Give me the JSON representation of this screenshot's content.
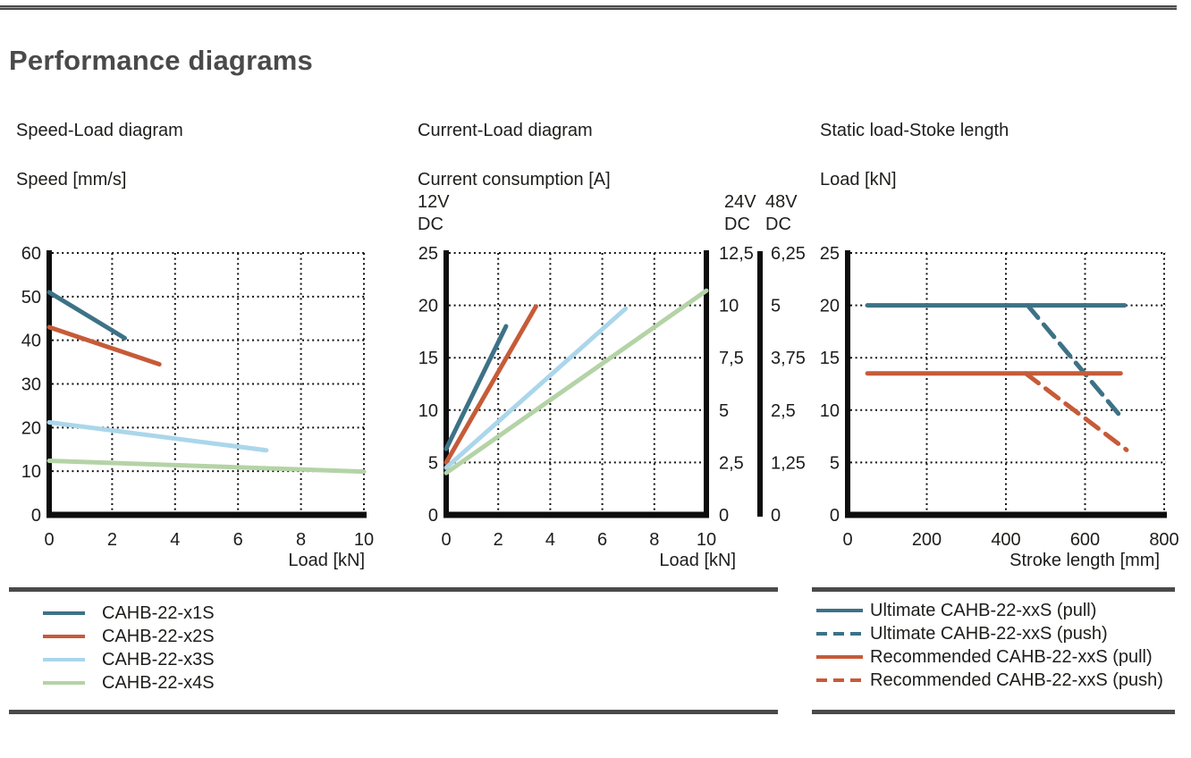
{
  "page": {
    "title": "Performance diagrams"
  },
  "colors": {
    "steel_blue": "#3d7286",
    "orange": "#c65b38",
    "light_blue": "#abd6eb",
    "light_green": "#b4d3a6",
    "rule_gray": "#4a4a4a"
  },
  "chart_data": [
    {
      "type": "line",
      "title": "Speed-Load diagram",
      "ylabel": "Speed [mm/s]",
      "xlabel": "Load [kN]",
      "xlim": [
        0,
        10
      ],
      "ylim": [
        0,
        60
      ],
      "xticks": [
        "0",
        "2",
        "4",
        "6",
        "8",
        "10"
      ],
      "yticks": [
        "0",
        "10",
        "20",
        "30",
        "40",
        "50",
        "60"
      ],
      "grid": "dotted",
      "legend_position": "below-left",
      "series": [
        {
          "name": "CAHB-22-x1S",
          "color": "#3d7286",
          "style": "solid",
          "points": [
            [
              0,
              51
            ],
            [
              2.4,
              40.5
            ]
          ]
        },
        {
          "name": "CAHB-22-x2S",
          "color": "#c65b38",
          "style": "solid",
          "points": [
            [
              0,
              43
            ],
            [
              3.5,
              34.5
            ]
          ]
        },
        {
          "name": "CAHB-22-x3S",
          "color": "#abd6eb",
          "style": "solid",
          "points": [
            [
              0,
              21.2
            ],
            [
              6.9,
              14.8
            ]
          ]
        },
        {
          "name": "CAHB-22-x4S",
          "color": "#b4d3a6",
          "style": "solid",
          "points": [
            [
              0,
              12.4
            ],
            [
              10,
              9.9
            ]
          ]
        }
      ]
    },
    {
      "type": "line",
      "title": "Current-Load diagram",
      "ylabel": "Current consumption [A]",
      "xlabel": "Load [kN]",
      "xlim": [
        0,
        10
      ],
      "ylim": [
        0,
        25
      ],
      "xticks": [
        "0",
        "2",
        "4",
        "6",
        "8",
        "10"
      ],
      "grid": "dotted",
      "left_axis": {
        "volt": "12V",
        "unit": "DC",
        "ticks": [
          "0",
          "5",
          "10",
          "15",
          "20",
          "25"
        ]
      },
      "right_axis_24": {
        "volt": "24V",
        "unit": "DC",
        "ticks": [
          "0",
          "2,5",
          "5",
          "7,5",
          "10",
          "12,5"
        ]
      },
      "right_axis_48": {
        "volt": "48V",
        "unit": "DC",
        "ticks": [
          "0",
          "1,25",
          "2,5",
          "3,75",
          "5",
          "6,25"
        ]
      },
      "series": [
        {
          "name": "CAHB-22-x1S",
          "color": "#3d7286",
          "style": "solid",
          "points": [
            [
              0,
              6.3
            ],
            [
              2.3,
              18
            ]
          ]
        },
        {
          "name": "CAHB-22-x2S",
          "color": "#c65b38",
          "style": "solid",
          "points": [
            [
              0,
              5
            ],
            [
              3.45,
              19.9
            ]
          ]
        },
        {
          "name": "CAHB-22-x3S",
          "color": "#abd6eb",
          "style": "solid",
          "points": [
            [
              0,
              4.5
            ],
            [
              6.9,
              19.7
            ]
          ]
        },
        {
          "name": "CAHB-22-x4S",
          "color": "#b4d3a6",
          "style": "solid",
          "points": [
            [
              0,
              4
            ],
            [
              10,
              21.4
            ]
          ]
        }
      ]
    },
    {
      "type": "line",
      "title": "Static load-Stoke length",
      "ylabel": "Load [kN]",
      "xlabel": "Stroke length [mm]",
      "xlim": [
        0,
        800
      ],
      "ylim": [
        0,
        25
      ],
      "xticks": [
        "0",
        "200",
        "400",
        "600",
        "800"
      ],
      "yticks": [
        "0",
        "5",
        "10",
        "15",
        "20",
        "25"
      ],
      "grid": "dotted",
      "series": [
        {
          "name": "Ultimate CAHB-22-xxS (pull)",
          "color": "#3d7286",
          "style": "solid",
          "points": [
            [
              50,
              20
            ],
            [
              700,
              20
            ]
          ]
        },
        {
          "name": "Ultimate CAHB-22-xxS (push)",
          "color": "#3d7286",
          "style": "dashed",
          "points": [
            [
              455,
              20
            ],
            [
              690,
              9.4
            ]
          ]
        },
        {
          "name": "Recommended CAHB-22-xxS (pull)",
          "color": "#c65b38",
          "style": "solid",
          "points": [
            [
              50,
              13.5
            ],
            [
              690,
              13.5
            ]
          ]
        },
        {
          "name": "Recommended CAHB-22-xxS (push)",
          "color": "#c65b38",
          "style": "dashed",
          "points": [
            [
              450,
              13.5
            ],
            [
              705,
              6.2
            ]
          ]
        }
      ]
    }
  ],
  "legends": {
    "left": {
      "items": [
        {
          "label": "CAHB-22-x1S",
          "color": "#3d7286",
          "style": "solid"
        },
        {
          "label": "CAHB-22-x2S",
          "color": "#c65b38",
          "style": "solid"
        },
        {
          "label": "CAHB-22-x3S",
          "color": "#abd6eb",
          "style": "solid"
        },
        {
          "label": "CAHB-22-x4S",
          "color": "#b4d3a6",
          "style": "solid"
        }
      ]
    },
    "right": {
      "items": [
        {
          "label": "Ultimate CAHB-22-xxS (pull)",
          "color": "#3d7286",
          "style": "solid"
        },
        {
          "label": "Ultimate CAHB-22-xxS (push)",
          "color": "#3d7286",
          "style": "dashed"
        },
        {
          "label": "Recommended CAHB-22-xxS (pull)",
          "color": "#c65b38",
          "style": "solid"
        },
        {
          "label": "Recommended CAHB-22-xxS (push)",
          "color": "#c65b38",
          "style": "dashed"
        }
      ]
    }
  }
}
